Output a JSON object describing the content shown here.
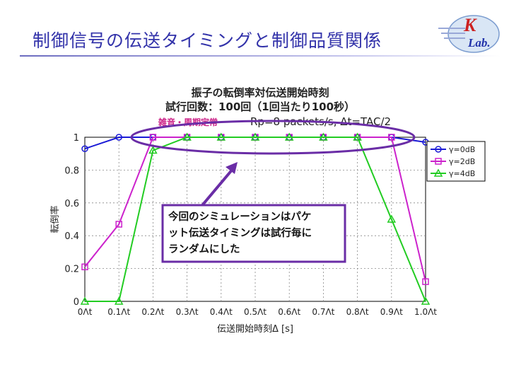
{
  "slide": {
    "title": "制御信号の伝送タイミングと制御品質関係",
    "logo_letters": [
      "K",
      "Lab."
    ],
    "accent": "#3333aa"
  },
  "chart_data": {
    "type": "line",
    "title_lines": [
      "振子の転倒率対伝送開始時刻",
      "試行回数：100回（1回当たり100秒）"
    ],
    "params_label": "Rp=8 packets/s, Δt=TAC/2",
    "xlabel": "伝送開始時刻Δ [s]",
    "ylabel": "転倒率",
    "x": [
      0,
      0.1,
      0.2,
      0.3,
      0.4,
      0.5,
      0.6,
      0.7,
      0.8,
      0.9,
      1.0
    ],
    "x_tick_labels": [
      "0Λt",
      "0.1Λt",
      "0.2Λt",
      "0.3Λt",
      "0.4Λt",
      "0.5Λt",
      "0.6Λt",
      "0.7Λt",
      "0.8Λt",
      "0.9Λt",
      "1.0Λt"
    ],
    "y_ticks": [
      0,
      0.2,
      0.4,
      0.6,
      0.8,
      1
    ],
    "y_tick_labels": [
      "0",
      "0.2",
      "0.4",
      "0.6",
      "0.8",
      "1"
    ],
    "xlim": [
      0,
      1.0
    ],
    "ylim": [
      0,
      1
    ],
    "grid": true,
    "legend_position": "top-right",
    "series": [
      {
        "name": "γ=0dB",
        "color": "#1a1ad6",
        "marker": "circle",
        "values": [
          0.93,
          1,
          1,
          1,
          1,
          1,
          1,
          1,
          1,
          1,
          0.97
        ]
      },
      {
        "name": "γ=2dB",
        "color": "#cc22cc",
        "marker": "square",
        "values": [
          0.21,
          0.47,
          1,
          1,
          1,
          1,
          1,
          1,
          1,
          1,
          0.12
        ]
      },
      {
        "name": "γ=4dB",
        "color": "#22cc22",
        "marker": "triangle",
        "values": [
          0,
          0,
          0.92,
          1,
          1,
          1,
          1,
          1,
          1,
          0.5,
          0
        ]
      }
    ],
    "annotations": {
      "noise_label": "雑音・周期定常",
      "callout_lines": [
        "今回のシミュレーションはパケ",
        "ット伝送タイミングは試行毎に",
        "ランダムにした"
      ]
    }
  }
}
